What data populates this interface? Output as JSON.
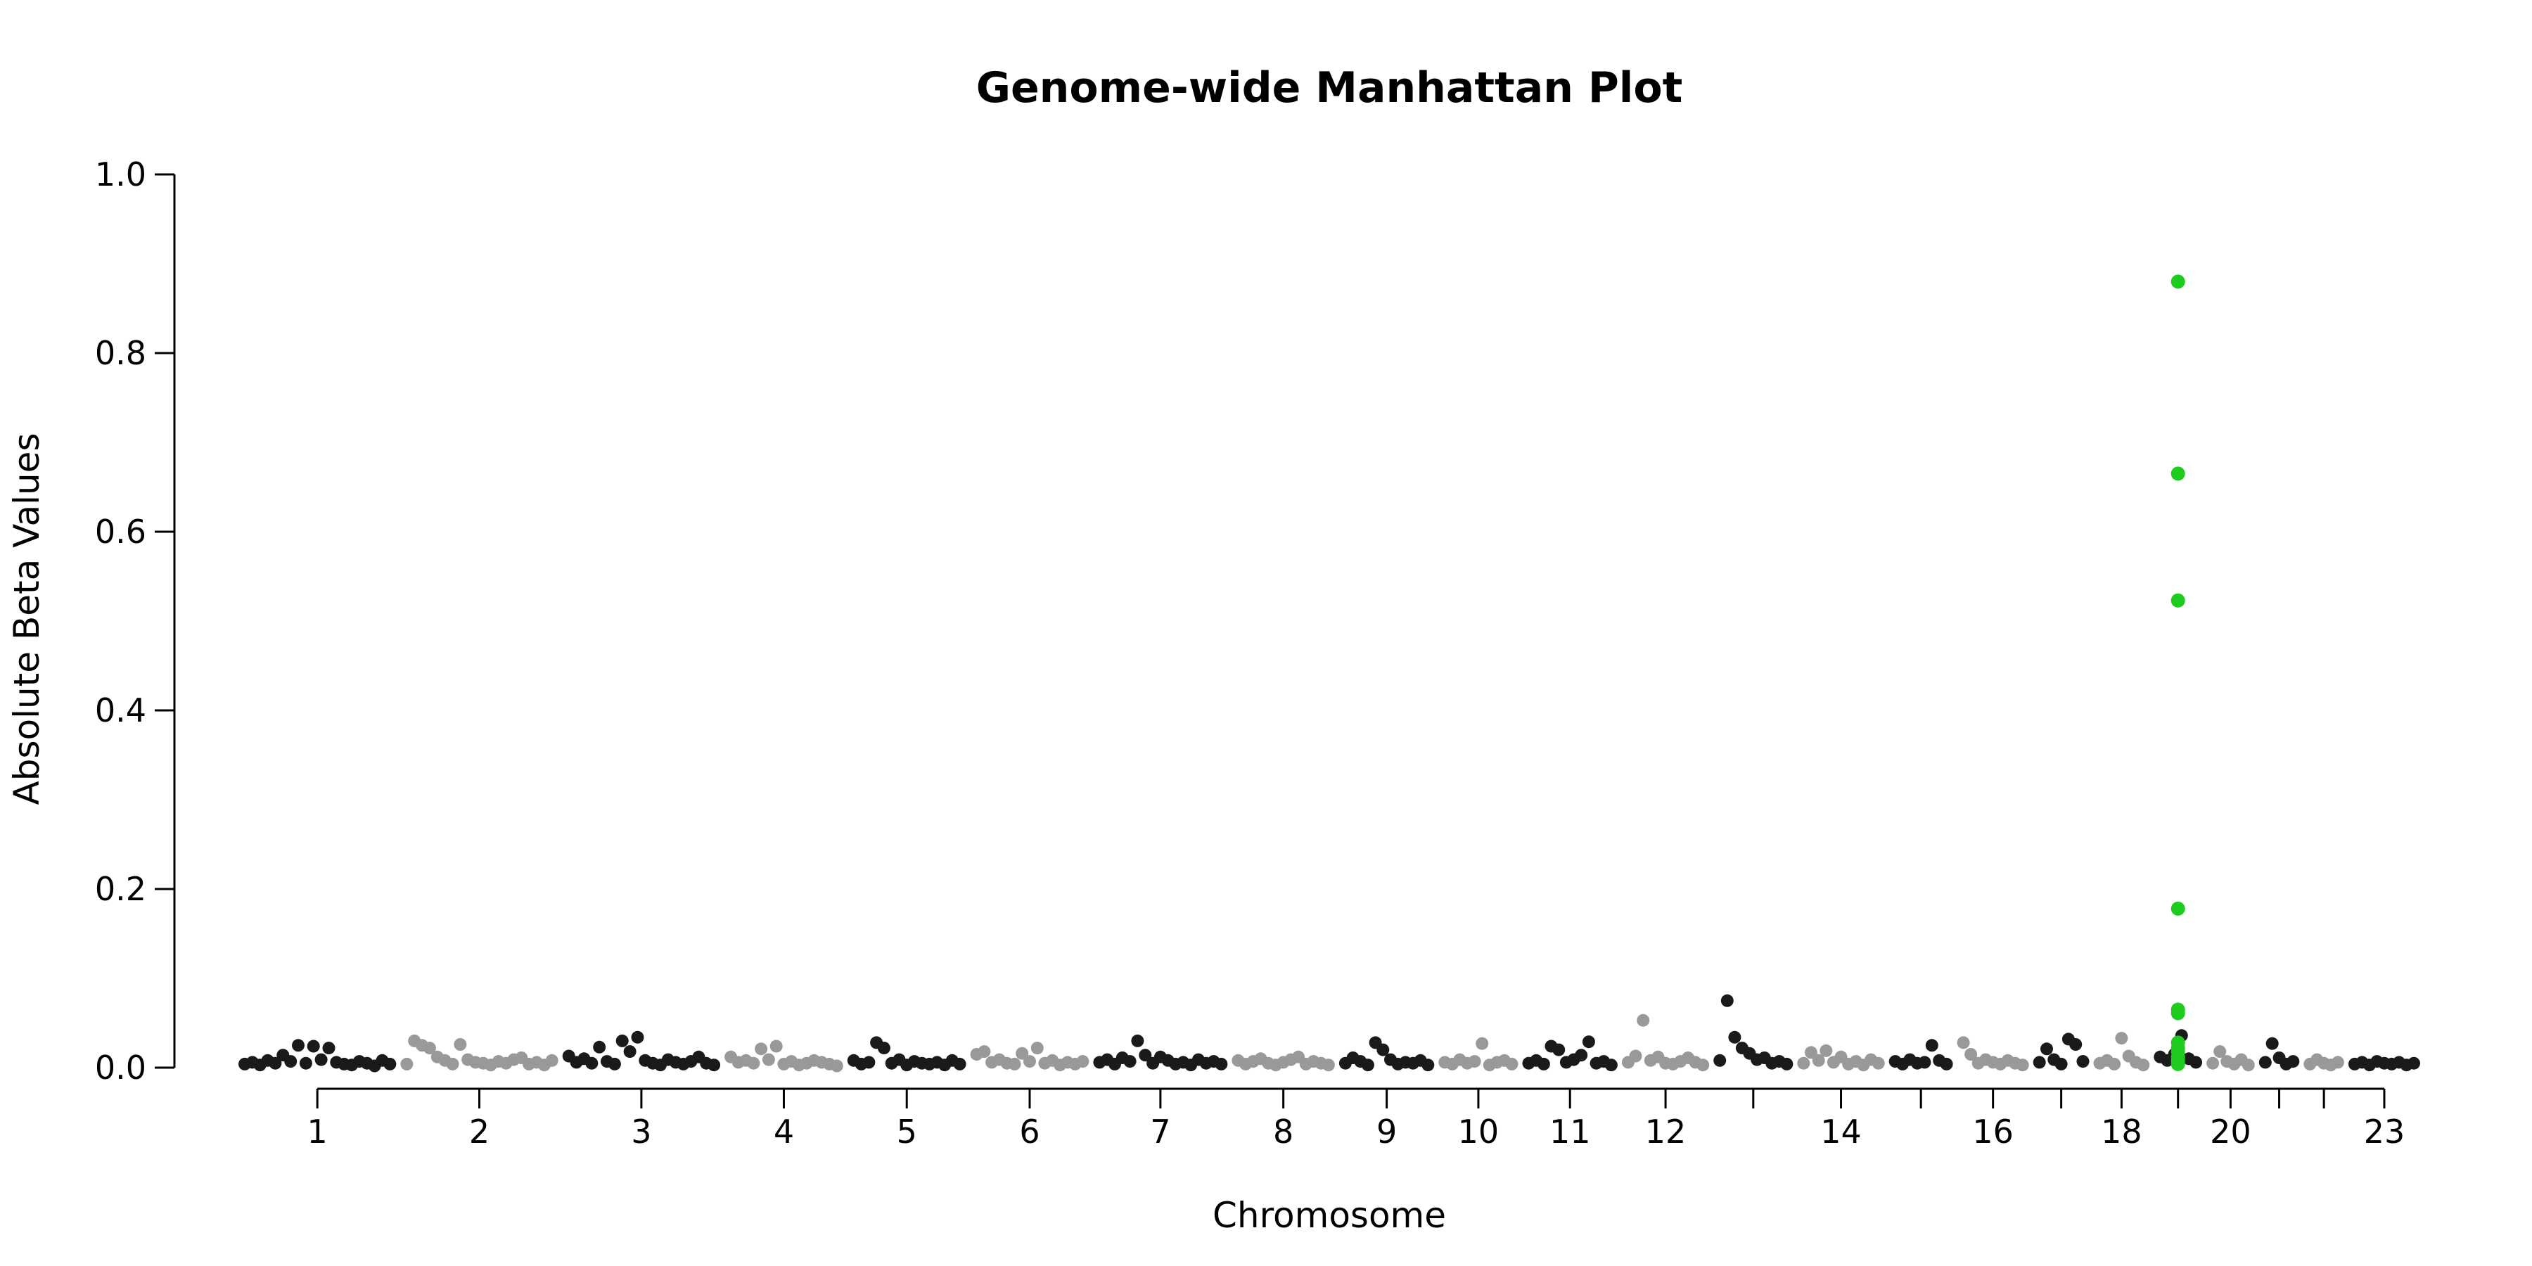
{
  "chart_data": {
    "type": "scatter",
    "title": "Genome-wide Manhattan Plot",
    "xlabel": "Chromosome",
    "ylabel": "Absolute Beta Values",
    "ylim": [
      0,
      1
    ],
    "yticks": [
      "0.0",
      "0.2",
      "0.4",
      "0.6",
      "0.8",
      "1.0"
    ],
    "grid": false,
    "legend": "none",
    "colors": {
      "dark": "#1a1a1a",
      "light": "#999999",
      "highlight": "#1ecc1e"
    },
    "chromosome_tick_labels": [
      "1",
      "2",
      "3",
      "4",
      "5",
      "6",
      "7",
      "8",
      "9",
      "10",
      "11",
      "12",
      "14",
      "16",
      "18",
      "20",
      "23"
    ],
    "chromosomes": [
      {
        "chr": "1",
        "label": "1",
        "color": "dark",
        "values": [
          0.004,
          0.006,
          0.003,
          0.008,
          0.005,
          0.014,
          0.007,
          0.025,
          0.005,
          0.024,
          0.009,
          0.022,
          0.006,
          0.004,
          0.003,
          0.007,
          0.005,
          0.002,
          0.008,
          0.004
        ]
      },
      {
        "chr": "2",
        "label": "2",
        "color": "light",
        "values": [
          0.004,
          0.03,
          0.025,
          0.022,
          0.012,
          0.008,
          0.004,
          0.026,
          0.009,
          0.006,
          0.005,
          0.003,
          0.007,
          0.005,
          0.009,
          0.011,
          0.004,
          0.006,
          0.003,
          0.008
        ]
      },
      {
        "chr": "3",
        "label": "3",
        "color": "dark",
        "values": [
          0.013,
          0.006,
          0.01,
          0.005,
          0.023,
          0.007,
          0.004,
          0.03,
          0.018,
          0.034,
          0.008,
          0.005,
          0.003,
          0.009,
          0.006,
          0.004,
          0.007,
          0.012,
          0.005,
          0.003
        ]
      },
      {
        "chr": "4",
        "label": "4",
        "color": "light",
        "values": [
          0.012,
          0.006,
          0.008,
          0.005,
          0.021,
          0.009,
          0.024,
          0.004,
          0.007,
          0.003,
          0.005,
          0.008,
          0.006,
          0.004,
          0.002
        ]
      },
      {
        "chr": "5",
        "label": "5",
        "color": "dark",
        "values": [
          0.008,
          0.004,
          0.006,
          0.028,
          0.022,
          0.005,
          0.009,
          0.003,
          0.007,
          0.005,
          0.004,
          0.006,
          0.003,
          0.008,
          0.004
        ]
      },
      {
        "chr": "6",
        "label": "6",
        "color": "light",
        "values": [
          0.015,
          0.018,
          0.006,
          0.009,
          0.005,
          0.004,
          0.016,
          0.007,
          0.022,
          0.005,
          0.008,
          0.003,
          0.006,
          0.004,
          0.007
        ]
      },
      {
        "chr": "7",
        "label": "7",
        "color": "dark",
        "values": [
          0.006,
          0.009,
          0.004,
          0.011,
          0.007,
          0.03,
          0.014,
          0.005,
          0.012,
          0.008,
          0.004,
          0.006,
          0.003,
          0.009,
          0.005,
          0.007,
          0.004
        ]
      },
      {
        "chr": "8",
        "label": "8",
        "color": "light",
        "values": [
          0.008,
          0.004,
          0.007,
          0.01,
          0.005,
          0.003,
          0.006,
          0.009,
          0.012,
          0.004,
          0.007,
          0.005,
          0.003
        ]
      },
      {
        "chr": "9",
        "label": "9",
        "color": "dark",
        "values": [
          0.005,
          0.011,
          0.007,
          0.003,
          0.028,
          0.02,
          0.009,
          0.004,
          0.006,
          0.005,
          0.008,
          0.003
        ]
      },
      {
        "chr": "10",
        "label": "10",
        "color": "light",
        "values": [
          0.006,
          0.004,
          0.009,
          0.005,
          0.007,
          0.027,
          0.003,
          0.006,
          0.008,
          0.004
        ]
      },
      {
        "chr": "11",
        "label": "11",
        "color": "dark",
        "values": [
          0.005,
          0.008,
          0.004,
          0.024,
          0.02,
          0.006,
          0.009,
          0.014,
          0.029,
          0.005,
          0.007,
          0.003
        ]
      },
      {
        "chr": "12",
        "label": "12",
        "color": "light",
        "values": [
          0.006,
          0.013,
          0.053,
          0.008,
          0.012,
          0.005,
          0.004,
          0.007,
          0.011,
          0.006,
          0.003
        ]
      },
      {
        "chr": "13",
        "label": "",
        "color": "dark",
        "values": [
          0.008,
          0.075,
          0.034,
          0.022,
          0.016,
          0.009,
          0.011,
          0.005,
          0.007,
          0.004
        ]
      },
      {
        "chr": "14",
        "label": "14",
        "color": "light",
        "values": [
          0.005,
          0.017,
          0.008,
          0.019,
          0.006,
          0.012,
          0.004,
          0.007,
          0.003,
          0.009,
          0.005
        ]
      },
      {
        "chr": "15",
        "label": "",
        "color": "dark",
        "values": [
          0.007,
          0.004,
          0.009,
          0.005,
          0.006,
          0.025,
          0.008,
          0.004
        ]
      },
      {
        "chr": "16",
        "label": "16",
        "color": "light",
        "values": [
          0.028,
          0.015,
          0.005,
          0.009,
          0.006,
          0.004,
          0.008,
          0.005,
          0.003
        ]
      },
      {
        "chr": "17",
        "label": "",
        "color": "dark",
        "values": [
          0.006,
          0.021,
          0.009,
          0.004,
          0.032,
          0.026,
          0.007
        ]
      },
      {
        "chr": "18",
        "label": "18",
        "color": "light",
        "values": [
          0.005,
          0.008,
          0.004,
          0.033,
          0.013,
          0.006,
          0.003
        ]
      },
      {
        "chr": "19",
        "label": "",
        "color": "dark",
        "values": [
          0.012,
          0.008,
          0.015,
          0.036,
          0.01,
          0.006
        ]
      },
      {
        "chr": "20",
        "label": "20",
        "color": "light",
        "values": [
          0.005,
          0.018,
          0.007,
          0.004,
          0.009,
          0.003
        ]
      },
      {
        "chr": "21",
        "label": "",
        "color": "dark",
        "values": [
          0.006,
          0.027,
          0.011,
          0.004,
          0.007
        ]
      },
      {
        "chr": "22",
        "label": "",
        "color": "light",
        "values": [
          0.004,
          0.009,
          0.005,
          0.003,
          0.006
        ]
      },
      {
        "chr": "23",
        "label": "23",
        "color": "dark",
        "values": [
          0.004,
          0.006,
          0.003,
          0.007,
          0.005,
          0.004,
          0.006,
          0.003,
          0.005
        ]
      }
    ],
    "highlight": {
      "chr": "19",
      "color": "highlight",
      "values": [
        0.88,
        0.665,
        0.523,
        0.178,
        0.065,
        0.061,
        0.028,
        0.022,
        0.018,
        0.012,
        0.008,
        0.004
      ]
    }
  }
}
